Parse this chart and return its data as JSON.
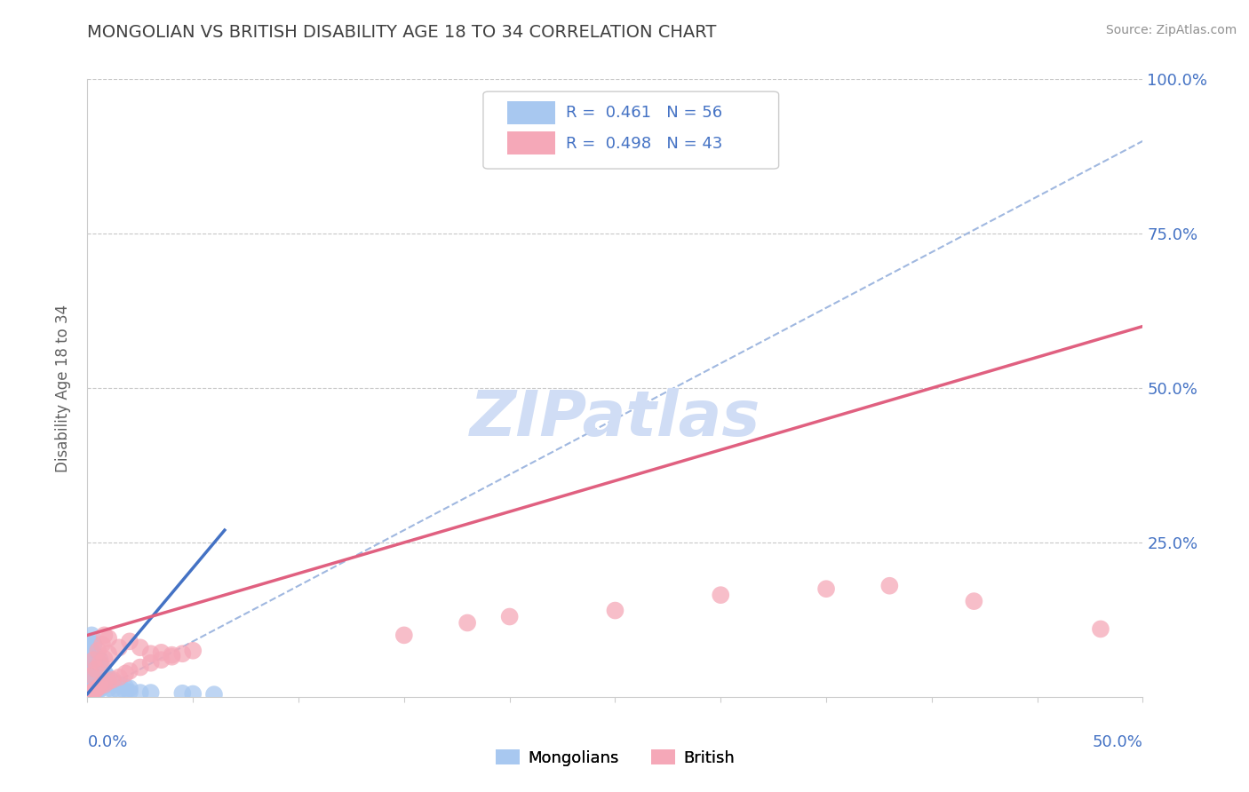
{
  "title": "MONGOLIAN VS BRITISH DISABILITY AGE 18 TO 34 CORRELATION CHART",
  "source": "Source: ZipAtlas.com",
  "ylabel": "Disability Age 18 to 34",
  "xmin": 0.0,
  "xmax": 0.5,
  "ymin": 0.0,
  "ymax": 1.0,
  "yticks": [
    0.0,
    0.25,
    0.5,
    0.75,
    1.0
  ],
  "ytick_labels": [
    "",
    "25.0%",
    "50.0%",
    "75.0%",
    "100.0%"
  ],
  "legend_mongolians_R": "0.461",
  "legend_mongolians_N": "56",
  "legend_british_R": "0.498",
  "legend_british_N": "43",
  "mongolian_color": "#a8c8f0",
  "british_color": "#f5a8b8",
  "mongolian_line_color": "#4472c4",
  "british_line_color": "#e06080",
  "diagonal_color": "#a0b8e0",
  "grid_color": "#c8c8c8",
  "watermark_color": "#d0ddf5",
  "title_color": "#404040",
  "legend_R_color": "#4472c4",
  "mongolians_scatter": [
    [
      0.001,
      0.005
    ],
    [
      0.002,
      0.006
    ],
    [
      0.001,
      0.008
    ],
    [
      0.003,
      0.004
    ],
    [
      0.002,
      0.01
    ],
    [
      0.004,
      0.007
    ],
    [
      0.001,
      0.015
    ],
    [
      0.003,
      0.012
    ],
    [
      0.002,
      0.02
    ],
    [
      0.005,
      0.009
    ],
    [
      0.001,
      0.025
    ],
    [
      0.004,
      0.018
    ],
    [
      0.002,
      0.03
    ],
    [
      0.003,
      0.022
    ],
    [
      0.001,
      0.035
    ],
    [
      0.005,
      0.016
    ],
    [
      0.002,
      0.04
    ],
    [
      0.004,
      0.028
    ],
    [
      0.003,
      0.045
    ],
    [
      0.006,
      0.02
    ],
    [
      0.001,
      0.05
    ],
    [
      0.002,
      0.055
    ],
    [
      0.004,
      0.038
    ],
    [
      0.003,
      0.06
    ],
    [
      0.005,
      0.032
    ],
    [
      0.007,
      0.024
    ],
    [
      0.006,
      0.042
    ],
    [
      0.008,
      0.018
    ],
    [
      0.01,
      0.014
    ],
    [
      0.012,
      0.012
    ],
    [
      0.015,
      0.01
    ],
    [
      0.018,
      0.009
    ],
    [
      0.02,
      0.008
    ],
    [
      0.025,
      0.007
    ],
    [
      0.03,
      0.007
    ],
    [
      0.002,
      0.065
    ],
    [
      0.003,
      0.07
    ],
    [
      0.004,
      0.055
    ],
    [
      0.005,
      0.05
    ],
    [
      0.006,
      0.06
    ],
    [
      0.007,
      0.048
    ],
    [
      0.008,
      0.04
    ],
    [
      0.009,
      0.035
    ],
    [
      0.01,
      0.03
    ],
    [
      0.012,
      0.025
    ],
    [
      0.015,
      0.02
    ],
    [
      0.018,
      0.016
    ],
    [
      0.02,
      0.014
    ],
    [
      0.001,
      0.08
    ],
    [
      0.002,
      0.075
    ],
    [
      0.003,
      0.085
    ],
    [
      0.001,
      0.09
    ],
    [
      0.045,
      0.006
    ],
    [
      0.05,
      0.005
    ],
    [
      0.002,
      0.1
    ],
    [
      0.06,
      0.004
    ]
  ],
  "british_scatter": [
    [
      0.001,
      0.005
    ],
    [
      0.002,
      0.008
    ],
    [
      0.003,
      0.01
    ],
    [
      0.004,
      0.012
    ],
    [
      0.005,
      0.015
    ],
    [
      0.006,
      0.018
    ],
    [
      0.008,
      0.02
    ],
    [
      0.01,
      0.025
    ],
    [
      0.012,
      0.028
    ],
    [
      0.015,
      0.032
    ],
    [
      0.018,
      0.038
    ],
    [
      0.02,
      0.042
    ],
    [
      0.025,
      0.048
    ],
    [
      0.03,
      0.055
    ],
    [
      0.035,
      0.06
    ],
    [
      0.04,
      0.065
    ],
    [
      0.045,
      0.07
    ],
    [
      0.05,
      0.075
    ],
    [
      0.002,
      0.035
    ],
    [
      0.004,
      0.045
    ],
    [
      0.006,
      0.055
    ],
    [
      0.008,
      0.062
    ],
    [
      0.01,
      0.07
    ],
    [
      0.015,
      0.08
    ],
    [
      0.003,
      0.06
    ],
    [
      0.005,
      0.075
    ],
    [
      0.007,
      0.085
    ],
    [
      0.02,
      0.09
    ],
    [
      0.025,
      0.08
    ],
    [
      0.03,
      0.07
    ],
    [
      0.035,
      0.072
    ],
    [
      0.04,
      0.068
    ],
    [
      0.008,
      0.1
    ],
    [
      0.01,
      0.095
    ],
    [
      0.2,
      0.13
    ],
    [
      0.25,
      0.14
    ],
    [
      0.35,
      0.175
    ],
    [
      0.38,
      0.18
    ],
    [
      0.15,
      0.1
    ],
    [
      0.18,
      0.12
    ],
    [
      0.3,
      0.165
    ],
    [
      0.42,
      0.155
    ],
    [
      0.48,
      0.11
    ]
  ],
  "mongo_line_x": [
    0.0,
    0.065
  ],
  "mongo_line_y": [
    0.005,
    0.27
  ],
  "brit_line_x": [
    0.0,
    0.5
  ],
  "brit_line_y": [
    0.1,
    0.6
  ]
}
